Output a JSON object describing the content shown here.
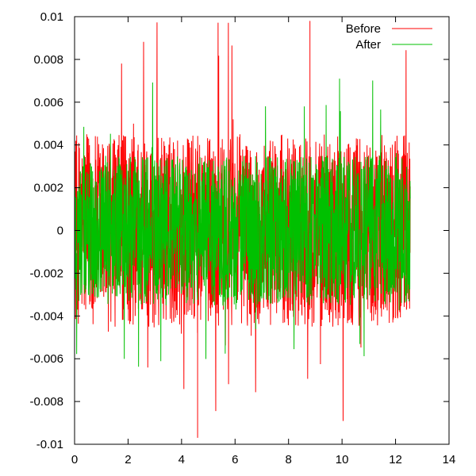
{
  "chart_data": {
    "type": "line",
    "title": "",
    "xlabel": "",
    "ylabel": "",
    "xlim": [
      0,
      14
    ],
    "ylim": [
      -0.01,
      0.01
    ],
    "x_ticks": [
      "0",
      "2",
      "4",
      "6",
      "8",
      "10",
      "12",
      "14"
    ],
    "y_ticks": [
      "0.01",
      "0.008",
      "0.006",
      "0.004",
      "0.002",
      "0",
      "-0.002",
      "-0.004",
      "-0.006",
      "-0.008",
      "-0.01"
    ],
    "x_tick_values": [
      0,
      2,
      4,
      6,
      8,
      10,
      12,
      14
    ],
    "y_tick_values": [
      0.01,
      0.008,
      0.006,
      0.004,
      0.002,
      0,
      -0.002,
      -0.004,
      -0.006,
      -0.008,
      -0.01
    ],
    "grid": false,
    "legend_position": "top-right",
    "x_end": 12.55,
    "series": [
      {
        "name": "Before",
        "color": "#ff0000",
        "typical_amplitude": 0.0045,
        "peak_max": 0.0098,
        "peak_min": -0.0097,
        "description_values": {
          "max_at_x": 8.8,
          "min_at_x": 4.6
        }
      },
      {
        "name": "After",
        "color": "#00c000",
        "typical_amplitude": 0.0035,
        "peak_max": 0.0073,
        "peak_min": -0.0071
      }
    ]
  }
}
